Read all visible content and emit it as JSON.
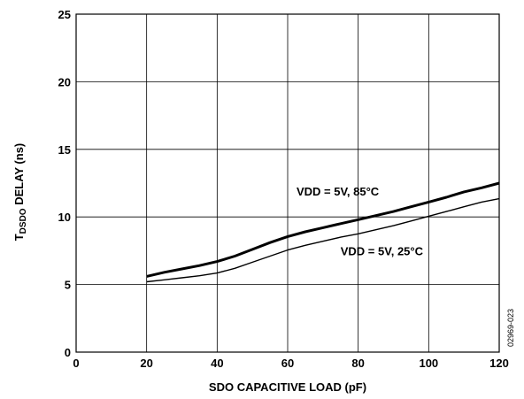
{
  "chart_data": {
    "type": "line",
    "xlabel": "SDO CAPACITIVE LOAD (pF)",
    "ylabel_main": "T",
    "ylabel_sub": "DSDO",
    "ylabel_rest": " DELAY (ns)",
    "xlim": [
      0,
      120
    ],
    "ylim": [
      0,
      25
    ],
    "xticks": [
      0,
      20,
      40,
      60,
      80,
      100,
      120
    ],
    "yticks": [
      0,
      5,
      10,
      15,
      20,
      25
    ],
    "xtick_labels": [
      "0",
      "20",
      "40",
      "60",
      "80",
      "100",
      "120"
    ],
    "ytick_labels": [
      "0",
      "5",
      "10",
      "15",
      "20",
      "25"
    ],
    "grid": true,
    "legend": "none",
    "series": [
      {
        "name": "VDD = 5V, 85°C",
        "x": [
          20,
          25,
          30,
          35,
          40,
          45,
          50,
          55,
          60,
          65,
          70,
          75,
          80,
          85,
          90,
          95,
          100,
          105,
          110,
          115,
          120
        ],
        "y": [
          5.6,
          5.9,
          6.15,
          6.4,
          6.7,
          7.1,
          7.6,
          8.1,
          8.55,
          8.9,
          9.2,
          9.5,
          9.8,
          10.1,
          10.4,
          10.75,
          11.1,
          11.45,
          11.85,
          12.15,
          12.5
        ],
        "label": "VDD = 5V, 85°C",
        "color": "#000000",
        "width": "thick"
      },
      {
        "name": "VDD = 5V, 25°C",
        "x": [
          20,
          25,
          30,
          35,
          40,
          45,
          50,
          55,
          60,
          65,
          70,
          75,
          80,
          85,
          90,
          95,
          100,
          105,
          110,
          115,
          120
        ],
        "y": [
          5.2,
          5.35,
          5.5,
          5.65,
          5.85,
          6.2,
          6.65,
          7.1,
          7.55,
          7.9,
          8.2,
          8.5,
          8.75,
          9.05,
          9.35,
          9.7,
          10.05,
          10.4,
          10.75,
          11.1,
          11.35
        ],
        "label": "VDD = 5V, 25°C",
        "color": "#000000",
        "width": "thin"
      }
    ],
    "figure_id": "02969-023"
  }
}
